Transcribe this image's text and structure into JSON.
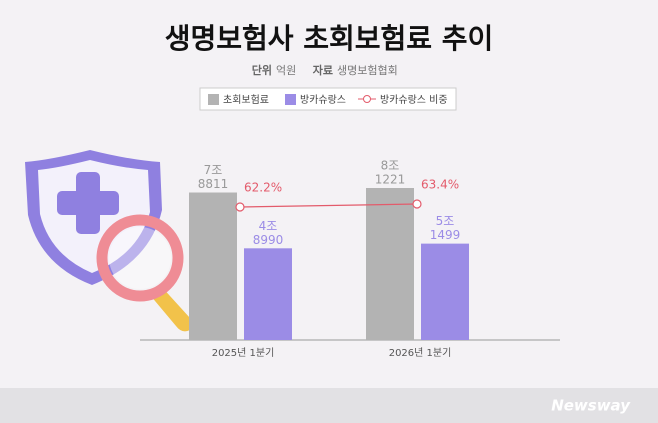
{
  "chart_data": {
    "type": "bar-line",
    "title": "생명보험사 초회보험료 추이",
    "unit_label": "단위",
    "unit": "억원",
    "source_label": "자료",
    "source": "생명보험협회",
    "categories": [
      "2025년 1분기",
      "2026년 1분기"
    ],
    "series": [
      {
        "name": "초회보험료",
        "color": "#b3b3b3",
        "values": [
          78811,
          81221
        ],
        "value_labels": [
          [
            "7조",
            "8811"
          ],
          [
            "8조",
            "1221"
          ]
        ]
      },
      {
        "name": "방카슈랑스",
        "color": "#9b8ce6",
        "values": [
          48990,
          51499
        ],
        "value_labels": [
          [
            "4조",
            "8990"
          ],
          [
            "5조",
            "1499"
          ]
        ]
      },
      {
        "name": "방카슈랑스 비중",
        "color": "#e35b6b",
        "type": "line",
        "values": [
          62.2,
          63.4
        ],
        "value_labels": [
          "62.2%",
          "63.4%"
        ]
      }
    ]
  },
  "footer": {
    "logo": "Newsway"
  }
}
